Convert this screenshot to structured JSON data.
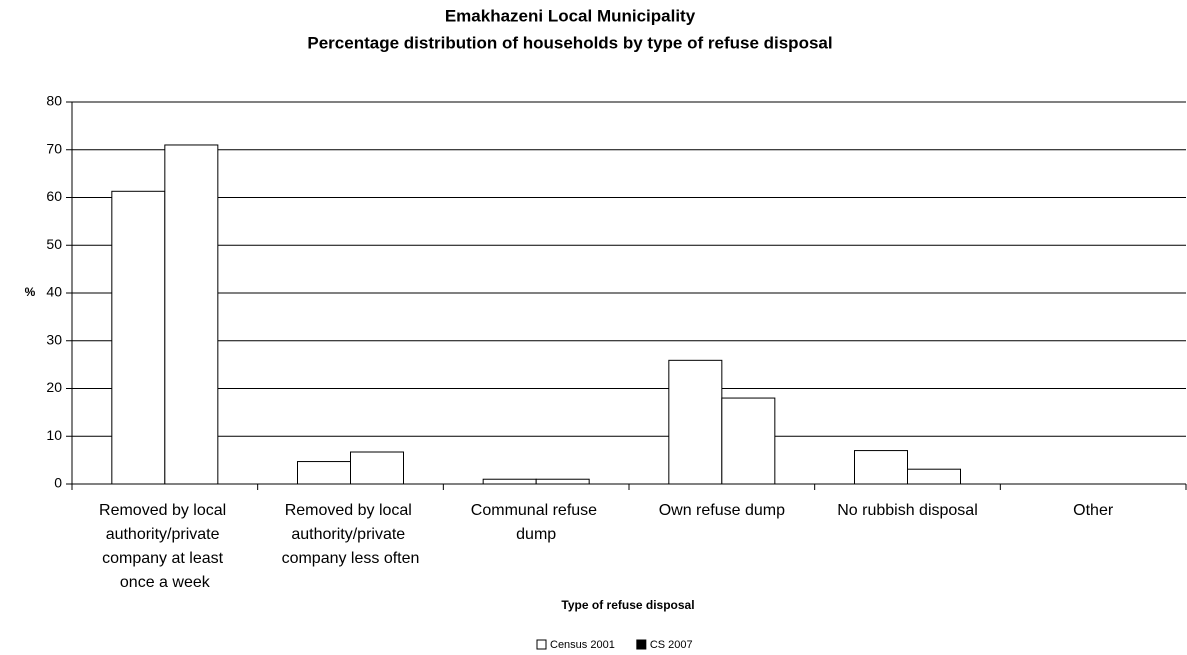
{
  "chart_data": {
    "type": "bar",
    "title": "Emakhazeni Local Municipality",
    "subtitle": "Percentage distribution of households by type of refuse disposal",
    "x_label": "Type of refuse disposal",
    "y_label": "%",
    "categories": [
      "Removed by local authority/private company at least once a week",
      "Removed by local authority/private company less often",
      "Communal refuse dump",
      "Own refuse dump",
      "No rubbish disposal",
      "Other"
    ],
    "series": [
      {
        "name": "Census 2001",
        "color": "#ffffff",
        "marker_color": "#ffffff",
        "values": [
          61.3,
          4.7,
          1.0,
          25.9,
          7.0,
          0
        ]
      },
      {
        "name": "CS 2007",
        "color": "#ffffff",
        "marker_color": "#000000",
        "values": [
          71.0,
          6.7,
          1.0,
          18.0,
          3.1,
          0
        ]
      }
    ],
    "ylim": [
      0,
      80
    ],
    "yticks": [
      0,
      10,
      20,
      30,
      40,
      50,
      60,
      70,
      80
    ],
    "grid": true,
    "legend": "bottom"
  }
}
